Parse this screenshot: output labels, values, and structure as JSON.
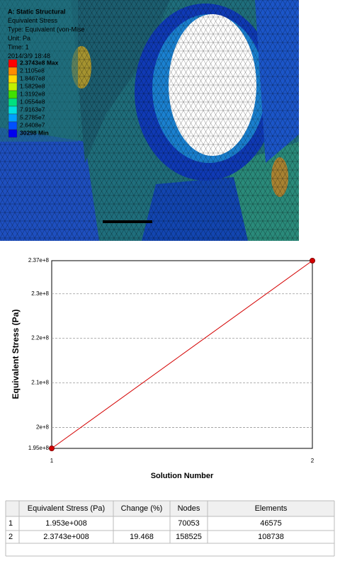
{
  "contour": {
    "header": [
      "A: Static Structural",
      "Equivalent Stress",
      "Type: Equivalent (von-Mise",
      "Unit: Pa",
      "Time: 1",
      "2014/3/9 18:48"
    ],
    "legend": [
      "2.3743e8 Max",
      "2.1105e8",
      "1.8467e8",
      "1.5829e8",
      "1.3192e8",
      "1.0554e8",
      "7.9163e7",
      "5.2785e7",
      "2.6408e7",
      "30298 Min"
    ]
  },
  "chart_data": {
    "type": "line",
    "x": [
      1,
      2
    ],
    "series": [
      {
        "name": "Equivalent Stress",
        "color": "#d40000",
        "values": [
          195300000,
          237430000
        ]
      }
    ],
    "xlim": [
      1,
      2
    ],
    "xticks": [
      1,
      2
    ],
    "ylim": [
      195300000,
      237430000
    ],
    "yticks": [
      {
        "value": 195300000,
        "label": "1.95e+8"
      },
      {
        "value": 200000000,
        "label": "2e+8"
      },
      {
        "value": 210000000,
        "label": "2.1e+8"
      },
      {
        "value": 220000000,
        "label": "2.2e+8"
      },
      {
        "value": 230000000,
        "label": "2.3e+8"
      },
      {
        "value": 237430000,
        "label": "2.37e+8"
      }
    ],
    "ylabel": "Equivalent Stress  (Pa)",
    "xlabel": "Solution Number",
    "grid": true
  },
  "table": {
    "columns": [
      "Equivalent Stress (Pa)",
      "Change (%)",
      "Nodes",
      "Elements"
    ],
    "rows": [
      {
        "id": "1",
        "stress": "1.953e+008",
        "nodes": "70053",
        "elements": "46575"
      },
      {
        "id": "2",
        "stress": "2.3743e+008",
        "change": "19.468",
        "nodes": "158525",
        "elements": "108738"
      }
    ]
  }
}
